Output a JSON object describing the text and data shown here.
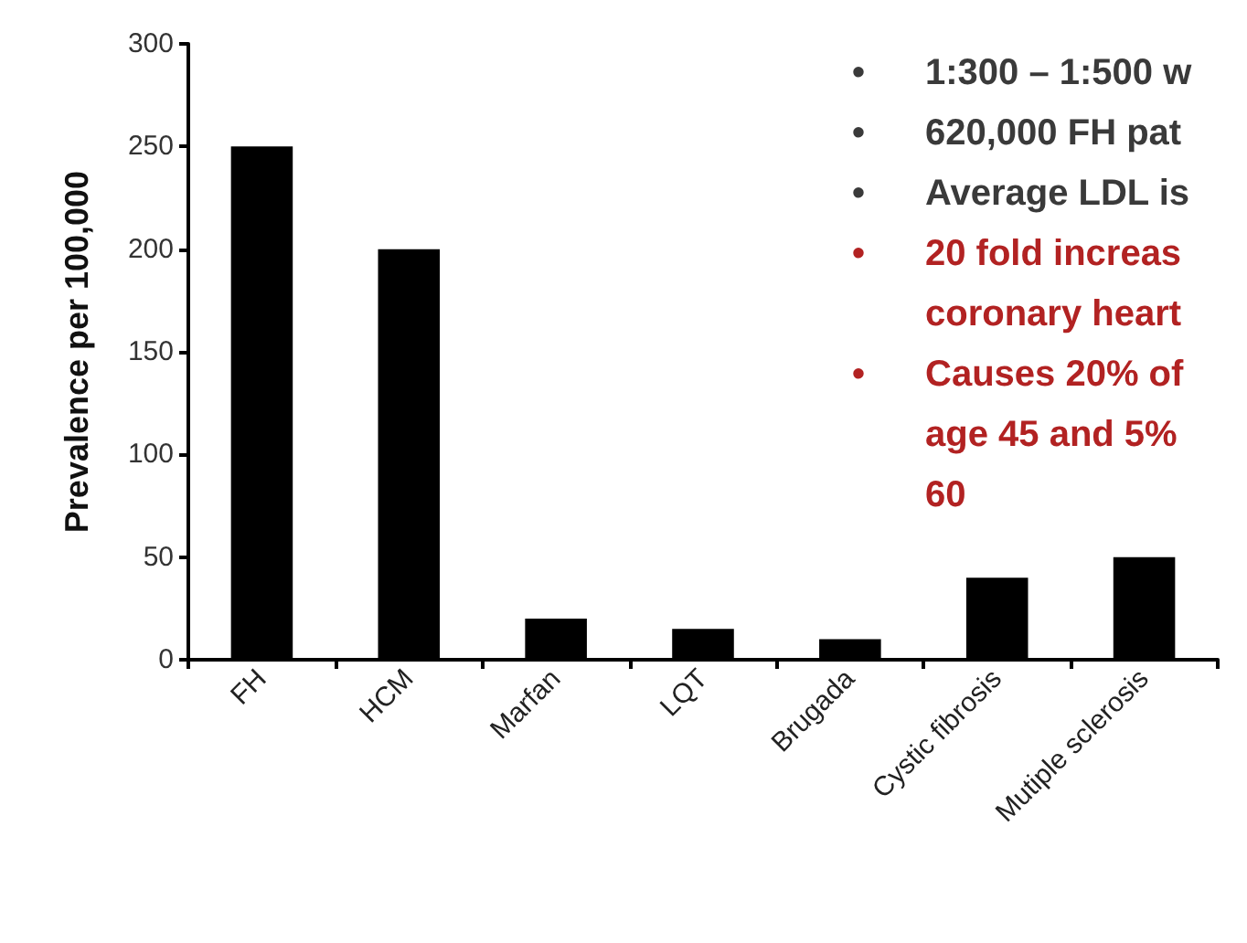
{
  "chart_data": {
    "type": "bar",
    "ylabel": "Prevalence per 100,000",
    "categories": [
      "FH",
      "HCM",
      "Marfan",
      "LQT",
      "Brugada",
      "Cystic fibrosis",
      "Mutiple sclerosis"
    ],
    "values": [
      250,
      200,
      20,
      15,
      10,
      40,
      50
    ],
    "color": "#000000",
    "ylim": [
      0,
      300
    ],
    "yticks": [
      0,
      50,
      100,
      150,
      200,
      250,
      300
    ],
    "grid": false,
    "annotations": [
      "• 1:300 – 1:500 w",
      "• 620,000 FH pat",
      "• Average LDL is",
      "• 20 fold increas\ncoronary heart",
      "• Causes 20% of\nage 45 and 5%\n60"
    ]
  }
}
